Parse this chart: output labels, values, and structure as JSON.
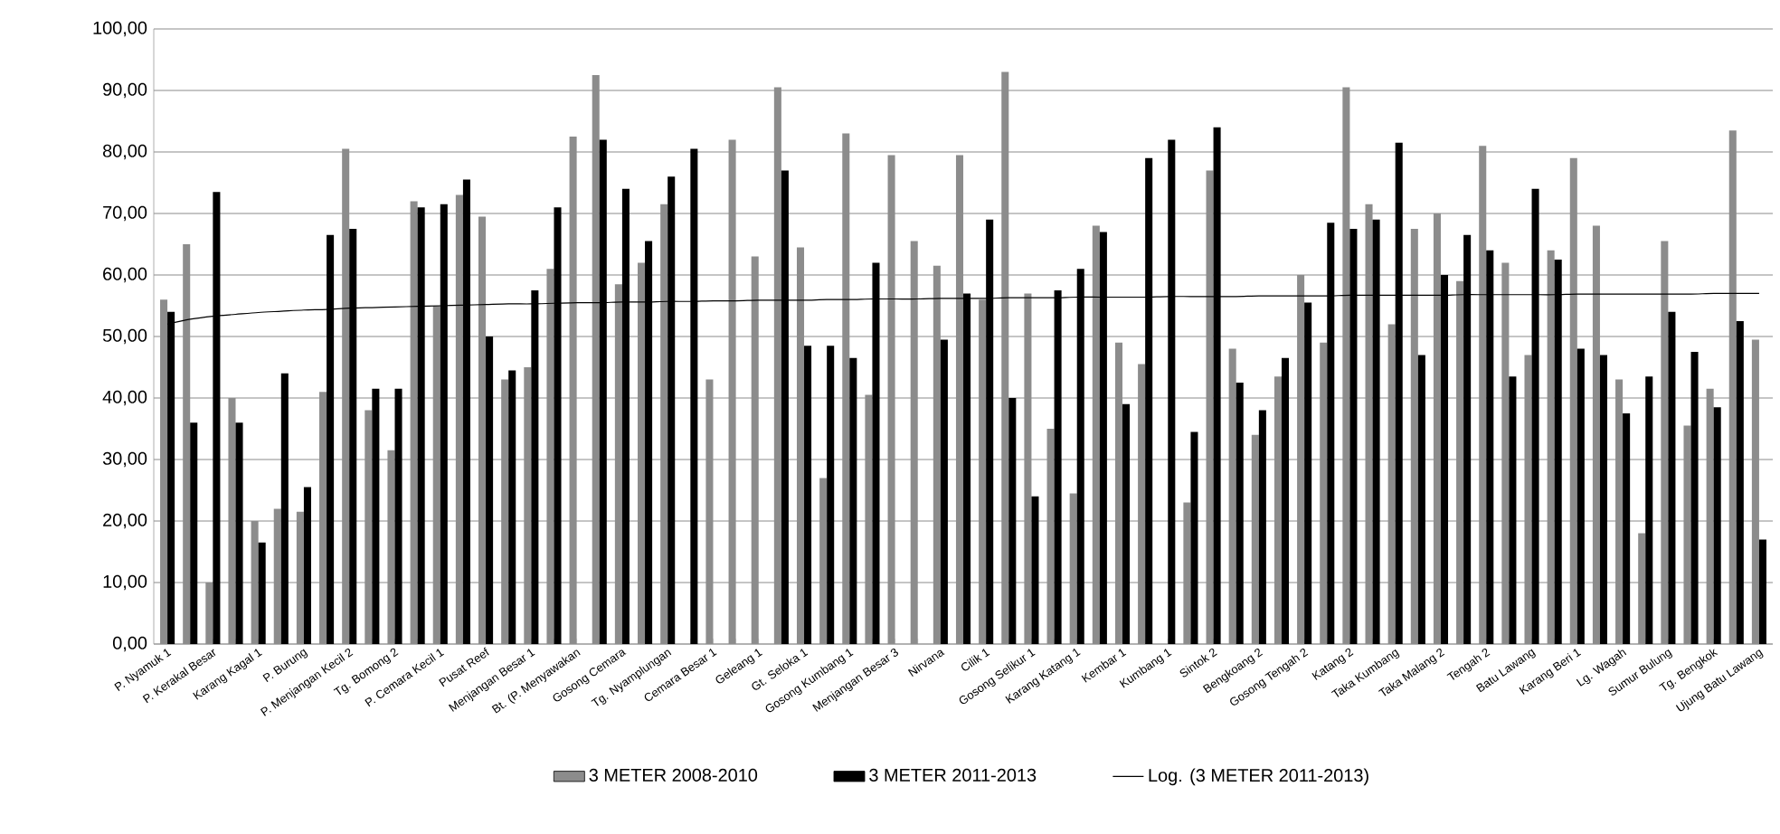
{
  "chart_data": {
    "type": "bar",
    "categories": [
      "P. Nyamuk 1",
      null,
      "P. Kerakal Besar",
      null,
      "Karang Kagal 1",
      null,
      "P. Burung",
      null,
      "P. Menjangan Kecil 2",
      null,
      "Tg. Bomong 2",
      null,
      "P. Cemara Kecil 1",
      null,
      "Pusat Reef",
      null,
      "Menjangan Besar 1",
      null,
      "Bt. (P. Menyawakan",
      null,
      "Gosong Cemara",
      null,
      "Tg. Nyamplungan",
      null,
      "Cemara Besar 1",
      null,
      "Geleang 1",
      null,
      "Gt. Seloka 1",
      null,
      "Gosong Kumbang 1",
      null,
      "Menjangan Besar 3",
      null,
      "Nirvana",
      null,
      "Cilik 1",
      null,
      "Gosong Selikur 1",
      null,
      "Karang Katang 1",
      null,
      "Kembar 1",
      null,
      "Kumbang 1",
      null,
      "Sintok 2",
      null,
      "Bengkoang 2",
      null,
      "Gosong Tengah 2",
      null,
      "Katang 2",
      null,
      "Taka Kumbang",
      null,
      "Taka Malang 2",
      null,
      "Tengah 2",
      null,
      "Batu Lawang",
      null,
      "Karang Beri 1",
      null,
      "Lg. Wagah",
      null,
      "Sumur Bulung",
      null,
      "Tg. Bengkok",
      null,
      "Ujung Batu Lawang"
    ],
    "series": [
      {
        "name": "3 METER 2008-2010",
        "color": "#8c8c8c",
        "values": [
          56,
          65,
          10,
          40,
          20,
          22,
          21.5,
          41,
          80.5,
          38,
          31.5,
          72,
          55,
          73,
          69.5,
          43,
          45,
          61,
          82.5,
          92.5,
          58.5,
          62,
          71.5,
          null,
          43,
          82,
          63,
          90.5,
          64.5,
          27,
          83,
          40.5,
          79.5,
          65.5,
          61.5,
          79.5,
          56,
          93,
          57,
          35,
          24.5,
          68,
          49,
          45.5,
          null,
          23,
          77,
          48,
          34,
          43.5,
          60,
          49,
          90.5,
          71.5,
          52,
          67.5,
          70,
          59,
          81,
          62,
          47,
          64,
          79,
          68,
          43,
          18,
          65.5,
          35.5,
          41.5,
          83.5,
          49.5
        ]
      },
      {
        "name": "3 METER 2011-2013",
        "color": "#000000",
        "values": [
          54,
          36,
          73.5,
          36,
          16.5,
          44,
          25.5,
          66.5,
          67.5,
          41.5,
          41.5,
          71,
          71.5,
          75.5,
          50,
          44.5,
          57.5,
          71,
          null,
          82,
          74,
          65.5,
          76,
          80.5,
          null,
          null,
          null,
          77,
          48.5,
          48.5,
          46.5,
          62,
          null,
          null,
          49.5,
          57,
          69,
          40,
          24,
          57.5,
          61,
          67,
          39,
          79,
          82,
          34.5,
          84,
          42.5,
          38,
          46.5,
          55.5,
          68.5,
          67.5,
          69,
          81.5,
          47,
          60,
          66.5,
          64,
          43.5,
          74,
          62.5,
          48,
          47,
          37.5,
          43.5,
          54,
          47.5,
          38.5,
          52.5,
          17
        ]
      },
      {
        "name": "Log. (3 METER 2011-2013)",
        "type": "line",
        "color": "#000000",
        "values": [
          52.0,
          52.8,
          53.3,
          53.6,
          53.9,
          54.1,
          54.3,
          54.4,
          54.6,
          54.7,
          54.8,
          54.9,
          55.0,
          55.1,
          55.2,
          55.3,
          55.3,
          55.4,
          55.5,
          55.5,
          55.6,
          55.6,
          55.7,
          55.7,
          55.8,
          55.8,
          55.9,
          55.9,
          55.9,
          56.0,
          56.0,
          56.1,
          56.1,
          56.1,
          56.2,
          56.2,
          56.2,
          56.3,
          56.3,
          56.3,
          56.4,
          56.4,
          56.4,
          56.4,
          56.5,
          56.5,
          56.5,
          56.5,
          56.6,
          56.6,
          56.6,
          56.6,
          56.7,
          56.7,
          56.7,
          56.7,
          56.7,
          56.8,
          56.8,
          56.8,
          56.8,
          56.8,
          56.9,
          56.9,
          56.9,
          56.9,
          56.9,
          56.9,
          57.0,
          57.0,
          57.0
        ]
      }
    ],
    "ylim": [
      0,
      100
    ],
    "yticks": [
      {
        "value": 0,
        "label": "0,00"
      },
      {
        "value": 10,
        "label": "10,00"
      },
      {
        "value": 20,
        "label": "20,00"
      },
      {
        "value": 30,
        "label": "30,00"
      },
      {
        "value": 40,
        "label": "40,00"
      },
      {
        "value": 50,
        "label": "50,00"
      },
      {
        "value": 60,
        "label": "60,00"
      },
      {
        "value": 70,
        "label": "70,00"
      },
      {
        "value": 80,
        "label": "80,00"
      },
      {
        "value": 90,
        "label": "90,00"
      },
      {
        "value": 100,
        "label": "100,00"
      }
    ],
    "grid": "y",
    "legend": "bottom"
  }
}
